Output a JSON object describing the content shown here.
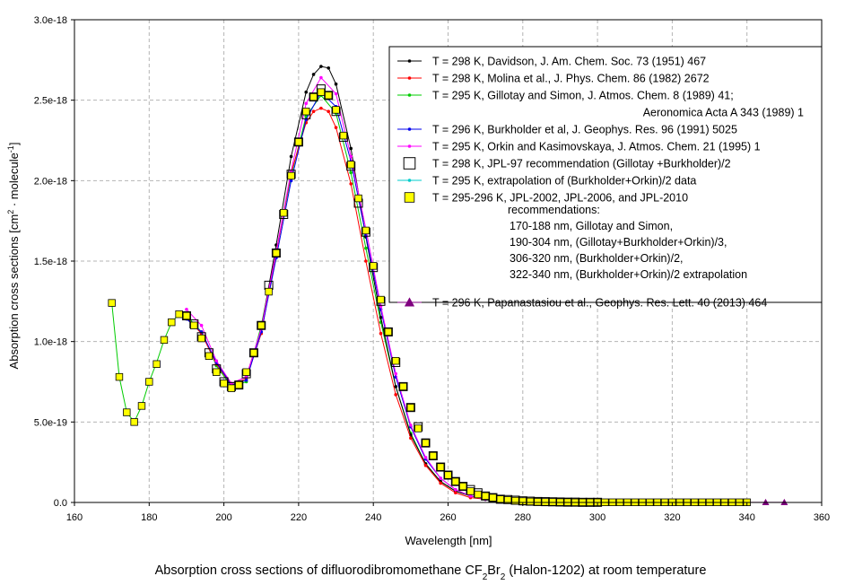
{
  "chart_data": {
    "type": "line",
    "caption": {
      "pre": "Absorption cross sections of difluorodibromomethane CF",
      "sub1": "2",
      "mid": "Br",
      "sub2": "2",
      "post": " (Halon-1202) at room temperature"
    },
    "xlabel": "Wavelength [nm]",
    "ylabel": {
      "pre": "Absorption cross sections [cm",
      "sup1": "2",
      "mid": " · molecule",
      "sup2": "-1",
      "post": "]"
    },
    "xlim": [
      160,
      360
    ],
    "ylim": [
      0,
      3e-18
    ],
    "grid": true,
    "legend_position": "top-right",
    "x_ticks": [
      160,
      180,
      200,
      220,
      240,
      260,
      280,
      300,
      320,
      340,
      360
    ],
    "x_tick_labels": [
      "160",
      "180",
      "200",
      "220",
      "240",
      "260",
      "280",
      "300",
      "320",
      "340",
      "360"
    ],
    "y_ticks": [
      0,
      5e-19,
      1e-18,
      1.5e-18,
      2e-18,
      2.5e-18,
      3e-18
    ],
    "y_tick_labels": [
      "0.0",
      "5.0e-19",
      "1.0e-18",
      "1.5e-18",
      "2.0e-18",
      "2.5e-18",
      "3.0e-18"
    ],
    "series": [
      {
        "name": "T = 298 K, Davidson, J. Am. Chem. Soc. 73 (1951) 467",
        "color": "#000000",
        "marker": "dot",
        "x": [
          190,
          194,
          198,
          202,
          206,
          210,
          214,
          218,
          222,
          224,
          226,
          228,
          230,
          234,
          238,
          242,
          246,
          250,
          254,
          258,
          262,
          266,
          270,
          275,
          280,
          290,
          300
        ],
        "y": [
          1.15e-18,
          1.05e-18,
          8.7e-19,
          7.4e-19,
          7.8e-19,
          1.08e-18,
          1.6e-18,
          2.15e-18,
          2.55e-18,
          2.66e-18,
          2.71e-18,
          2.7e-18,
          2.6e-18,
          2.2e-18,
          1.65e-18,
          1.15e-18,
          7.2e-19,
          4.2e-19,
          2.4e-19,
          1.3e-19,
          7e-20,
          4e-20,
          2e-20,
          1e-20,
          5e-21,
          2e-21,
          1e-21
        ]
      },
      {
        "name": "T = 298 K, Molina et al., J. Phys. Chem. 86 (1982) 2672",
        "color": "#ff0000",
        "marker": "dot",
        "x": [
          190,
          194,
          198,
          202,
          206,
          210,
          214,
          218,
          222,
          224,
          226,
          228,
          230,
          234,
          238,
          242,
          246,
          250,
          254,
          258,
          262,
          266,
          270,
          280,
          290,
          300
        ],
        "y": [
          1.15e-18,
          1.05e-18,
          8.6e-19,
          7.3e-19,
          7.7e-19,
          1.05e-18,
          1.55e-18,
          2.05e-18,
          2.36e-18,
          2.43e-18,
          2.45e-18,
          2.43e-18,
          2.33e-18,
          1.98e-18,
          1.5e-18,
          1.05e-18,
          6.7e-19,
          4e-19,
          2.3e-19,
          1.2e-19,
          6e-20,
          3e-20,
          2e-20,
          5e-21,
          2e-21,
          1e-21
        ]
      },
      {
        "name": "T = 295 K, Gillotay and Simon, J. Atmos. Chem. 8 (1989) 41;",
        "name2": "Aeronomica Acta A 343 (1989) 1",
        "color": "#00cc00",
        "marker": "dot",
        "x": [
          170,
          172,
          174,
          176,
          178,
          180,
          182,
          184,
          186,
          188,
          190,
          194,
          198,
          202,
          206,
          210,
          214,
          218,
          222,
          226,
          230,
          234,
          238,
          242,
          246,
          250,
          254,
          258,
          262,
          266,
          270,
          280,
          290,
          300
        ],
        "y": [
          1.24e-18,
          7.8e-19,
          5.6e-19,
          5e-19,
          6e-19,
          7.5e-19,
          8.7e-19,
          1.01e-18,
          1.12e-18,
          1.17e-18,
          1.16e-18,
          1.06e-18,
          8.5e-19,
          7.2e-19,
          7.5e-19,
          1.1e-18,
          1.56e-18,
          2.03e-18,
          2.4e-18,
          2.53e-18,
          2.42e-18,
          2.05e-18,
          1.58e-18,
          1.12e-18,
          7.2e-19,
          4.3e-19,
          2.4e-19,
          1.3e-19,
          7e-20,
          4e-20,
          2e-20,
          5e-21,
          2e-21,
          1e-21
        ]
      },
      {
        "name": "T = 296 K, Burkholder et al, J. Geophys. Res. 96 (1991) 5025",
        "color": "#0000ee",
        "marker": "dot",
        "x": [
          190,
          194,
          198,
          202,
          206,
          210,
          214,
          218,
          222,
          226,
          230,
          234,
          238,
          242,
          246,
          250,
          254,
          258,
          262,
          266,
          270,
          276,
          280,
          290,
          300
        ],
        "y": [
          1.14e-18,
          1.06e-18,
          8.7e-19,
          7.3e-19,
          7.6e-19,
          1.06e-18,
          1.52e-18,
          2e-18,
          2.38e-18,
          2.55e-18,
          2.46e-18,
          2.12e-18,
          1.66e-18,
          1.2e-18,
          7.8e-19,
          4.7e-19,
          2.7e-19,
          1.5e-19,
          8e-20,
          4e-20,
          2e-20,
          1e-20,
          5e-21,
          2e-21,
          1e-21
        ]
      },
      {
        "name": "T = 295 K, Orkin and Kasimovskaya, J. Atmos. Chem. 21 (1995) 1",
        "color": "#ff00ff",
        "marker": "dot",
        "x": [
          190,
          194,
          198,
          202,
          206,
          210,
          214,
          218,
          222,
          226,
          230,
          234,
          238,
          242,
          246,
          250,
          254,
          258,
          262,
          266,
          270,
          276,
          280,
          290,
          300
        ],
        "y": [
          1.2e-18,
          1.1e-18,
          8.8e-19,
          7.4e-19,
          7.8e-19,
          1.08e-18,
          1.56e-18,
          2.06e-18,
          2.48e-18,
          2.64e-18,
          2.54e-18,
          2.15e-18,
          1.7e-18,
          1.22e-18,
          8e-19,
          4.8e-19,
          2.8e-19,
          1.5e-19,
          8e-20,
          4e-20,
          2e-20,
          1e-20,
          5e-21,
          2e-21,
          1e-21
        ]
      },
      {
        "name": "T = 298 K, JPL-97  recommendation (Gillotay +Burkholder)/2",
        "color": "#000000",
        "marker": "open-square",
        "x": [
          190,
          192,
          194,
          196,
          198,
          200,
          202,
          204,
          206,
          208,
          210,
          212,
          214,
          216,
          218,
          220,
          222,
          224,
          226,
          228,
          230,
          232,
          234,
          236,
          238,
          240,
          242,
          244,
          246,
          248,
          250,
          252,
          254,
          256,
          258,
          260,
          262,
          264,
          266,
          268,
          270,
          272,
          274,
          276,
          278,
          280,
          282,
          284,
          286,
          288,
          290,
          292,
          294,
          296,
          298,
          300
        ],
        "y": [
          1.16e-18,
          1.11e-18,
          1.03e-18,
          9.3e-19,
          8.3e-19,
          7.5e-19,
          7.2e-19,
          7.3e-19,
          8e-19,
          9.3e-19,
          1.1e-18,
          1.35e-18,
          1.55e-18,
          1.79e-18,
          2.04e-18,
          2.24e-18,
          2.41e-18,
          2.52e-18,
          2.57e-18,
          2.53e-18,
          2.43e-18,
          2.27e-18,
          2.09e-18,
          1.86e-18,
          1.68e-18,
          1.46e-18,
          1.25e-18,
          1.06e-18,
          8.7e-19,
          7.2e-19,
          5.9e-19,
          4.7e-19,
          3.7e-19,
          2.9e-19,
          2.2e-19,
          1.7e-19,
          1.3e-19,
          1e-19,
          8e-20,
          6e-20,
          4e-20,
          3e-20,
          2e-20,
          1.8e-20,
          1.4e-20,
          1e-20,
          8e-21,
          6e-21,
          5e-21,
          4e-21,
          3e-21,
          2e-21,
          2e-21,
          1e-21,
          1e-21,
          1e-21
        ]
      },
      {
        "name": "T = 295 K, extrapolation of (Burkholder+Orkin)/2 data",
        "color": "#00cccc",
        "marker": "dot",
        "x": [
          300,
          302,
          304,
          306,
          308,
          310,
          312,
          314,
          316,
          318,
          320,
          322,
          324,
          326,
          328,
          330,
          332,
          334,
          336,
          338,
          340
        ],
        "y": [
          1e-21,
          1e-21,
          1e-21,
          1e-21,
          1e-21,
          1e-21,
          1e-21,
          1e-21,
          1e-21,
          1e-21,
          1e-21,
          1e-21,
          1e-21,
          1e-21,
          1e-21,
          1e-21,
          1e-21,
          1e-21,
          1e-21,
          1e-21,
          1e-21
        ]
      },
      {
        "name": "T = 295-296 K, JPL-2002, JPL-2006, and JPL-2010",
        "name_lines": [
          "recommendations:",
          "170-188 nm, Gillotay and Simon,",
          "190-304 nm, (Gillotay+Burkholder+Orkin)/3,",
          "306-320 nm, (Burkholder+Orkin)/2,",
          "322-340 nm, (Burkholder+Orkin)/2 extrapolation"
        ],
        "color": "#ffff00",
        "marker": "filled-square",
        "x": [
          170,
          172,
          174,
          176,
          178,
          180,
          182,
          184,
          186,
          188,
          190,
          192,
          194,
          196,
          198,
          200,
          202,
          204,
          206,
          208,
          210,
          212,
          214,
          216,
          218,
          220,
          222,
          224,
          226,
          228,
          230,
          232,
          234,
          236,
          238,
          240,
          242,
          244,
          246,
          248,
          250,
          252,
          254,
          256,
          258,
          260,
          262,
          264,
          266,
          268,
          270,
          272,
          274,
          276,
          278,
          280,
          282,
          284,
          286,
          288,
          290,
          292,
          294,
          296,
          298,
          300,
          302,
          304,
          306,
          308,
          310,
          312,
          314,
          316,
          318,
          320,
          322,
          324,
          326,
          328,
          330,
          332,
          334,
          336,
          338,
          340
        ],
        "y": [
          1.24e-18,
          7.8e-19,
          5.6e-19,
          5e-19,
          6e-19,
          7.5e-19,
          8.6e-19,
          1.01e-18,
          1.12e-18,
          1.17e-18,
          1.16e-18,
          1.1e-18,
          1.02e-18,
          9.1e-19,
          8.1e-19,
          7.4e-19,
          7.1e-19,
          7.3e-19,
          8.1e-19,
          9.3e-19,
          1.1e-18,
          1.31e-18,
          1.55e-18,
          1.8e-18,
          2.03e-18,
          2.24e-18,
          2.43e-18,
          2.52e-18,
          2.55e-18,
          2.53e-18,
          2.44e-18,
          2.28e-18,
          2.1e-18,
          1.89e-18,
          1.69e-18,
          1.47e-18,
          1.26e-18,
          1.06e-18,
          8.8e-19,
          7.2e-19,
          5.9e-19,
          4.6e-19,
          3.7e-19,
          2.9e-19,
          2.2e-19,
          1.7e-19,
          1.3e-19,
          1e-19,
          7e-20,
          5e-20,
          4e-20,
          3e-20,
          2e-20,
          1.5e-20,
          1.1e-20,
          8e-21,
          6e-21,
          4e-21,
          3e-21,
          3e-21,
          2e-21,
          2e-21,
          1e-21,
          1e-21,
          1e-21,
          1e-21,
          1e-21,
          1e-21,
          1e-21,
          1e-21,
          1e-21,
          1e-21,
          1e-21,
          1e-21,
          1e-21,
          1e-21,
          1e-21,
          1e-21,
          1e-21,
          1e-21,
          1e-21,
          1e-21,
          1e-21,
          1e-21,
          1e-21,
          1e-21
        ]
      },
      {
        "name": "T = 296 K, Papanastasiou et al., Geophys. Res. Lett. 40 (2013) 464",
        "color": "#800080",
        "marker": "triangle",
        "x": [
          300,
          305,
          310,
          315,
          320,
          325,
          330,
          335,
          340,
          345,
          350
        ],
        "y": [
          1e-21,
          1e-21,
          1e-21,
          1e-21,
          1e-21,
          1e-21,
          1e-21,
          1e-21,
          1e-21,
          1e-21,
          1e-21
        ]
      }
    ]
  }
}
